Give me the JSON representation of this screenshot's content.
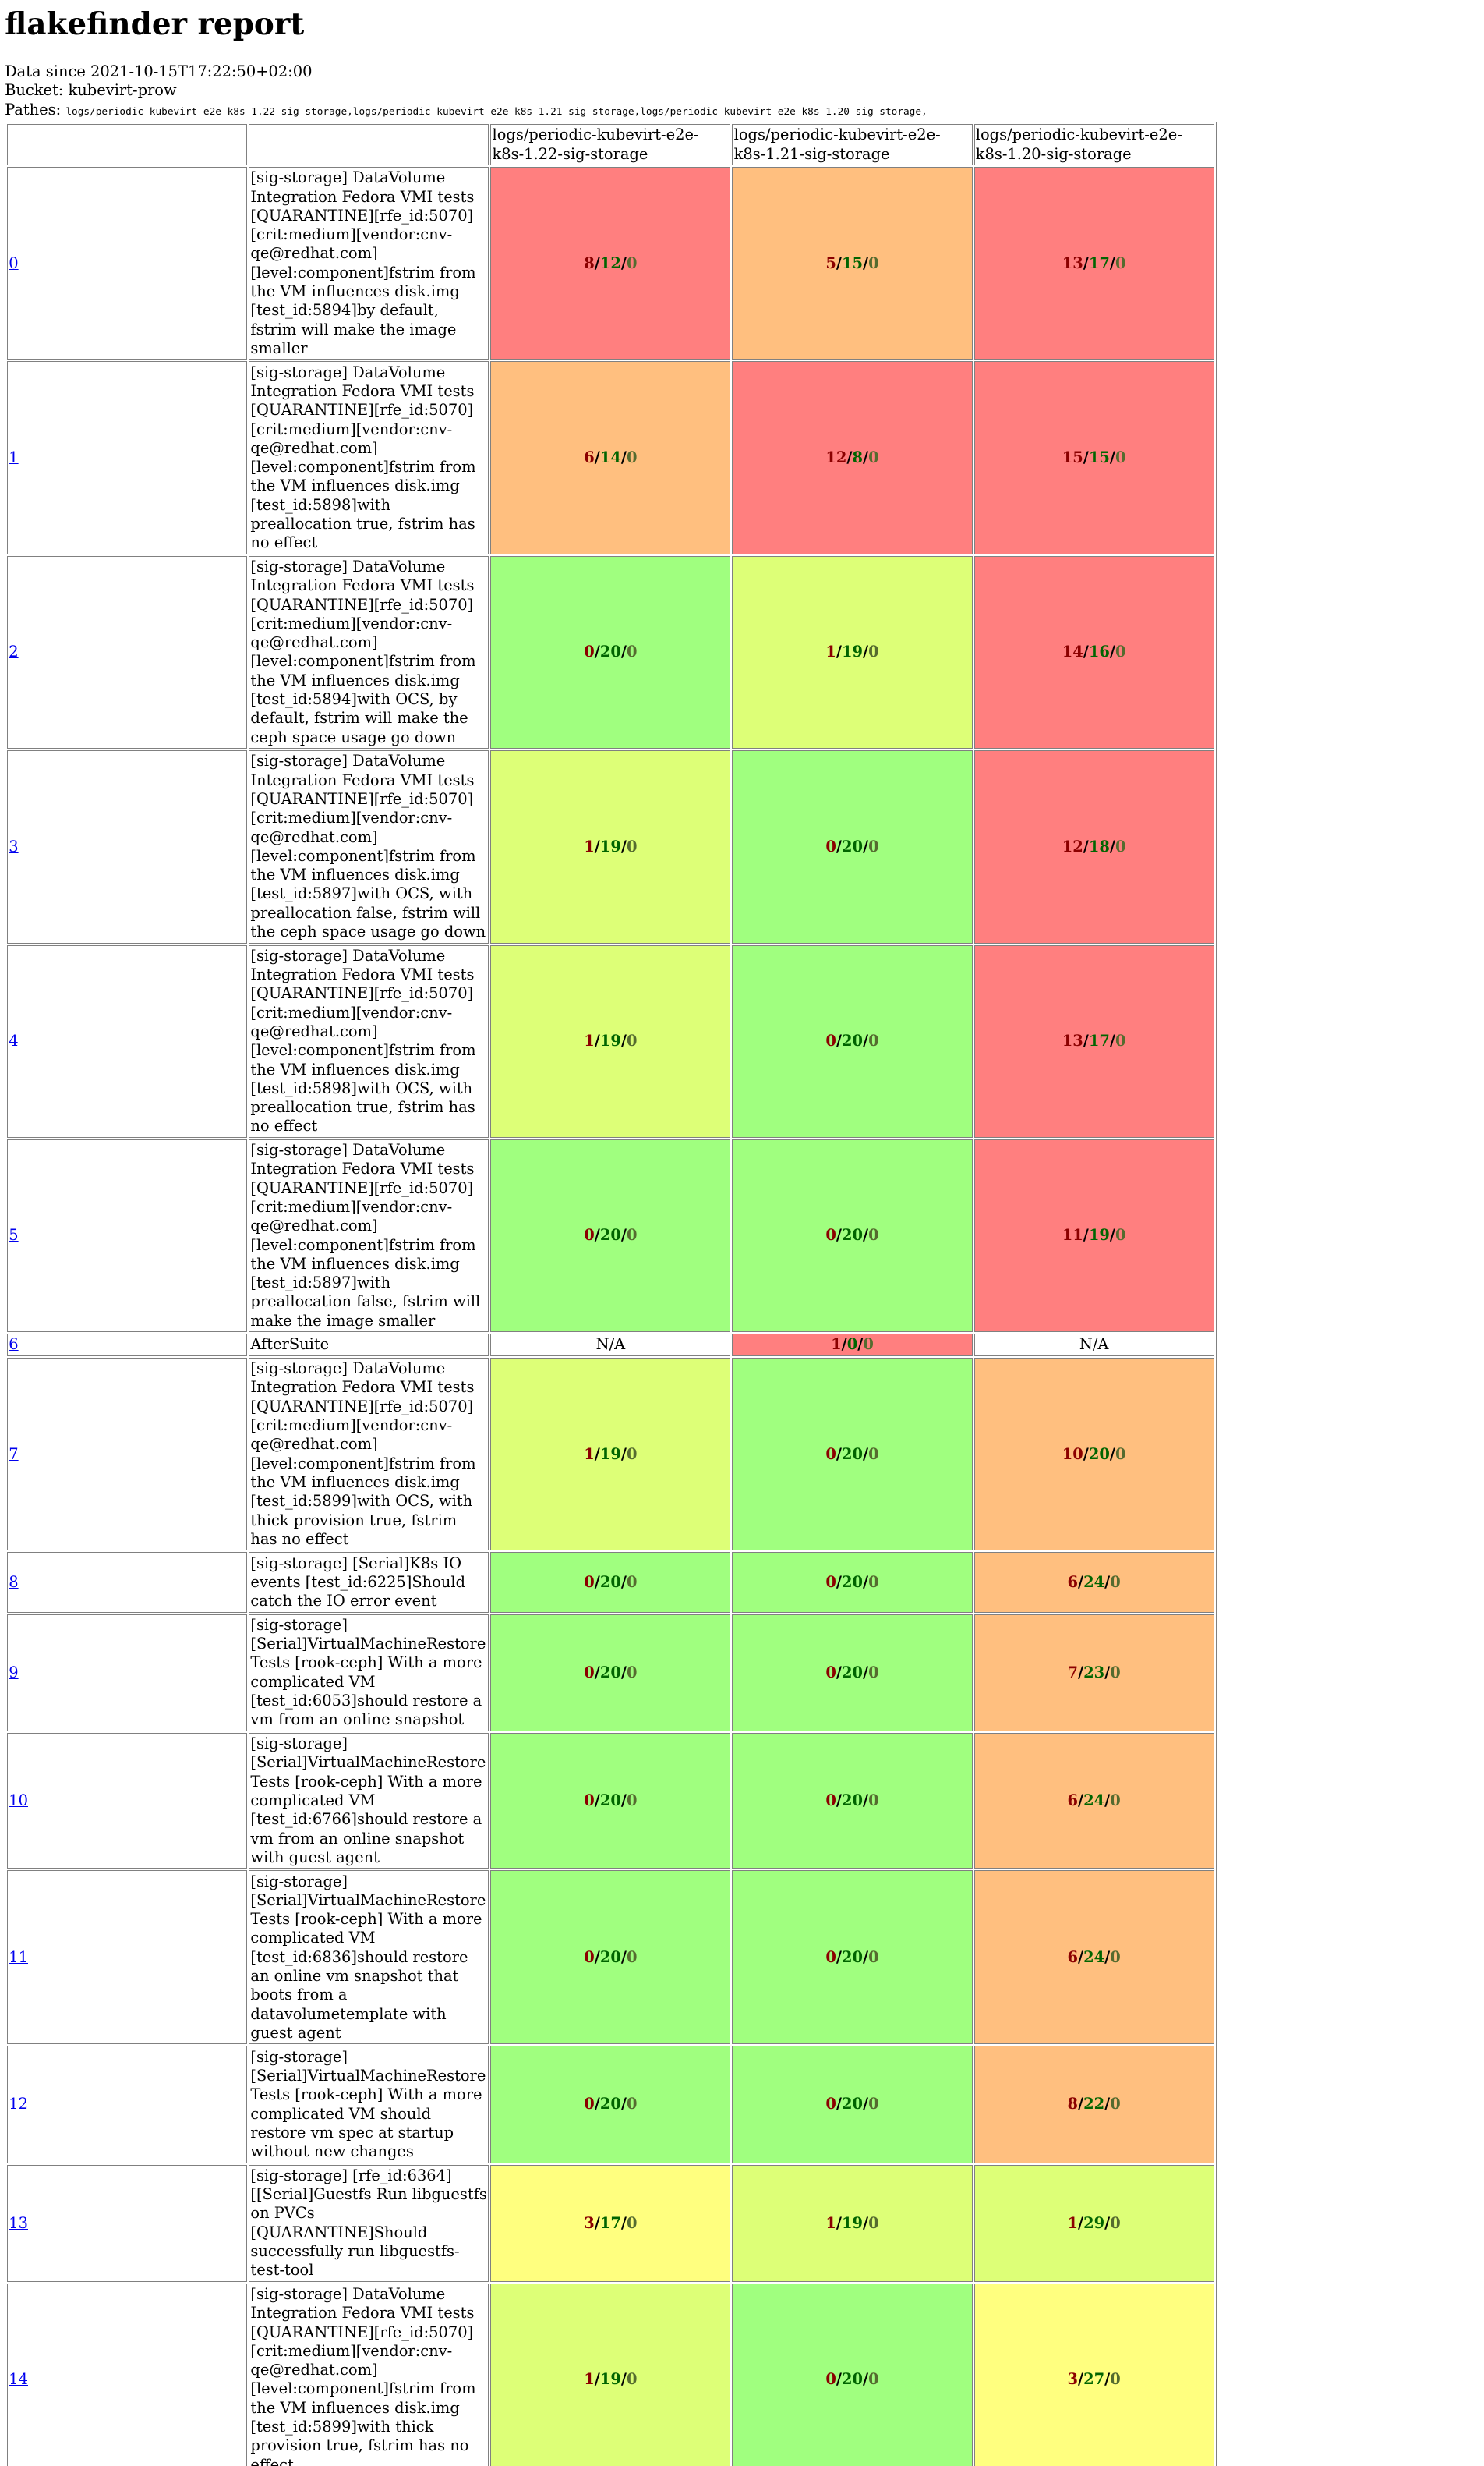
{
  "title": "flakefinder report",
  "meta": {
    "data_since_label": "Data since",
    "data_since_value": "2021-10-15T17:22:50+02:00",
    "bucket_label": "Bucket:",
    "bucket_value": "kubevirt-prow",
    "pathes_label": "Pathes:",
    "pathes_value": "logs/periodic-kubevirt-e2e-k8s-1.22-sig-storage,logs/periodic-kubevirt-e2e-k8s-1.21-sig-storage,logs/periodic-kubevirt-e2e-k8s-1.20-sig-storage,"
  },
  "colors": {
    "red": "#ff7f7f",
    "orange": "#ffbf7f",
    "green": "#a0ff7f",
    "lime": "#ddff77",
    "yellow": "#ffff7f",
    "white": "#ffffff",
    "failed_text": "#8b0000",
    "succeeded_text": "#006400",
    "skipped_text": "#556b2f"
  },
  "columns": [
    "logs/periodic-kubevirt-e2e-k8s-1.22-sig-storage",
    "logs/periodic-kubevirt-e2e-k8s-1.21-sig-storage",
    "logs/periodic-kubevirt-e2e-k8s-1.20-sig-storage"
  ],
  "rows": [
    {
      "index": "0",
      "name": "[sig-storage] DataVolume Integration Fedora VMI tests [QUARANTINE][rfe_id:5070][crit:medium][vendor:cnv-qe@redhat.com][level:component]fstrim from the VM influences disk.img [test_id:5894]by default, fstrim will make the image smaller",
      "cells": [
        {
          "f": "8",
          "s": "12",
          "k": "0",
          "color": "red"
        },
        {
          "f": "5",
          "s": "15",
          "k": "0",
          "color": "orange"
        },
        {
          "f": "13",
          "s": "17",
          "k": "0",
          "color": "red"
        }
      ]
    },
    {
      "index": "1",
      "name": "[sig-storage] DataVolume Integration Fedora VMI tests [QUARANTINE][rfe_id:5070][crit:medium][vendor:cnv-qe@redhat.com][level:component]fstrim from the VM influences disk.img [test_id:5898]with preallocation true, fstrim has no effect",
      "cells": [
        {
          "f": "6",
          "s": "14",
          "k": "0",
          "color": "orange"
        },
        {
          "f": "12",
          "s": "8",
          "k": "0",
          "color": "red"
        },
        {
          "f": "15",
          "s": "15",
          "k": "0",
          "color": "red"
        }
      ]
    },
    {
      "index": "2",
      "name": "[sig-storage] DataVolume Integration Fedora VMI tests [QUARANTINE][rfe_id:5070][crit:medium][vendor:cnv-qe@redhat.com][level:component]fstrim from the VM influences disk.img [test_id:5894]with OCS, by default, fstrim will make the ceph space usage go down",
      "cells": [
        {
          "f": "0",
          "s": "20",
          "k": "0",
          "color": "green"
        },
        {
          "f": "1",
          "s": "19",
          "k": "0",
          "color": "lime"
        },
        {
          "f": "14",
          "s": "16",
          "k": "0",
          "color": "red"
        }
      ]
    },
    {
      "index": "3",
      "name": "[sig-storage] DataVolume Integration Fedora VMI tests [QUARANTINE][rfe_id:5070][crit:medium][vendor:cnv-qe@redhat.com][level:component]fstrim from the VM influences disk.img [test_id:5897]with OCS, with preallocation false, fstrim will the ceph space usage go down",
      "cells": [
        {
          "f": "1",
          "s": "19",
          "k": "0",
          "color": "lime"
        },
        {
          "f": "0",
          "s": "20",
          "k": "0",
          "color": "green"
        },
        {
          "f": "12",
          "s": "18",
          "k": "0",
          "color": "red"
        }
      ]
    },
    {
      "index": "4",
      "name": "[sig-storage] DataVolume Integration Fedora VMI tests [QUARANTINE][rfe_id:5070][crit:medium][vendor:cnv-qe@redhat.com][level:component]fstrim from the VM influences disk.img [test_id:5898]with OCS, with preallocation true, fstrim has no effect",
      "cells": [
        {
          "f": "1",
          "s": "19",
          "k": "0",
          "color": "lime"
        },
        {
          "f": "0",
          "s": "20",
          "k": "0",
          "color": "green"
        },
        {
          "f": "13",
          "s": "17",
          "k": "0",
          "color": "red"
        }
      ]
    },
    {
      "index": "5",
      "name": "[sig-storage] DataVolume Integration Fedora VMI tests [QUARANTINE][rfe_id:5070][crit:medium][vendor:cnv-qe@redhat.com][level:component]fstrim from the VM influences disk.img [test_id:5897]with preallocation false, fstrim will make the image smaller",
      "cells": [
        {
          "f": "0",
          "s": "20",
          "k": "0",
          "color": "green"
        },
        {
          "f": "0",
          "s": "20",
          "k": "0",
          "color": "green"
        },
        {
          "f": "11",
          "s": "19",
          "k": "0",
          "color": "red"
        }
      ]
    },
    {
      "index": "6",
      "name": "AfterSuite",
      "cells": [
        {
          "na": "N/A",
          "color": "white"
        },
        {
          "f": "1",
          "s": "0",
          "k": "0",
          "color": "red"
        },
        {
          "na": "N/A",
          "color": "white"
        }
      ]
    },
    {
      "index": "7",
      "name": "[sig-storage] DataVolume Integration Fedora VMI tests [QUARANTINE][rfe_id:5070][crit:medium][vendor:cnv-qe@redhat.com][level:component]fstrim from the VM influences disk.img [test_id:5899]with OCS, with thick provision true, fstrim has no effect",
      "cells": [
        {
          "f": "1",
          "s": "19",
          "k": "0",
          "color": "lime"
        },
        {
          "f": "0",
          "s": "20",
          "k": "0",
          "color": "green"
        },
        {
          "f": "10",
          "s": "20",
          "k": "0",
          "color": "orange"
        }
      ]
    },
    {
      "index": "8",
      "name": "[sig-storage] [Serial]K8s IO events [test_id:6225]Should catch the IO error event",
      "cells": [
        {
          "f": "0",
          "s": "20",
          "k": "0",
          "color": "green"
        },
        {
          "f": "0",
          "s": "20",
          "k": "0",
          "color": "green"
        },
        {
          "f": "6",
          "s": "24",
          "k": "0",
          "color": "orange"
        }
      ]
    },
    {
      "index": "9",
      "name": "[sig-storage] [Serial]VirtualMachineRestore Tests [rook-ceph] With a more complicated VM [test_id:6053]should restore a vm from an online snapshot",
      "cells": [
        {
          "f": "0",
          "s": "20",
          "k": "0",
          "color": "green"
        },
        {
          "f": "0",
          "s": "20",
          "k": "0",
          "color": "green"
        },
        {
          "f": "7",
          "s": "23",
          "k": "0",
          "color": "orange"
        }
      ]
    },
    {
      "index": "10",
      "name": "[sig-storage] [Serial]VirtualMachineRestore Tests [rook-ceph] With a more complicated VM [test_id:6766]should restore a vm from an online snapshot with guest agent",
      "cells": [
        {
          "f": "0",
          "s": "20",
          "k": "0",
          "color": "green"
        },
        {
          "f": "0",
          "s": "20",
          "k": "0",
          "color": "green"
        },
        {
          "f": "6",
          "s": "24",
          "k": "0",
          "color": "orange"
        }
      ]
    },
    {
      "index": "11",
      "name": "[sig-storage] [Serial]VirtualMachineRestore Tests [rook-ceph] With a more complicated VM [test_id:6836]should restore an online vm snapshot that boots from a datavolumetemplate with guest agent",
      "cells": [
        {
          "f": "0",
          "s": "20",
          "k": "0",
          "color": "green"
        },
        {
          "f": "0",
          "s": "20",
          "k": "0",
          "color": "green"
        },
        {
          "f": "6",
          "s": "24",
          "k": "0",
          "color": "orange"
        }
      ]
    },
    {
      "index": "12",
      "name": "[sig-storage] [Serial]VirtualMachineRestore Tests [rook-ceph] With a more complicated VM should restore vm spec at startup without new changes",
      "cells": [
        {
          "f": "0",
          "s": "20",
          "k": "0",
          "color": "green"
        },
        {
          "f": "0",
          "s": "20",
          "k": "0",
          "color": "green"
        },
        {
          "f": "8",
          "s": "22",
          "k": "0",
          "color": "orange"
        }
      ]
    },
    {
      "index": "13",
      "name": "[sig-storage] [rfe_id:6364][[Serial]Guestfs Run libguestfs on PVCs [QUARANTINE]Should successfully run libguestfs-test-tool",
      "cells": [
        {
          "f": "3",
          "s": "17",
          "k": "0",
          "color": "yellow"
        },
        {
          "f": "1",
          "s": "19",
          "k": "0",
          "color": "lime"
        },
        {
          "f": "1",
          "s": "29",
          "k": "0",
          "color": "lime"
        }
      ]
    },
    {
      "index": "14",
      "name": "[sig-storage] DataVolume Integration Fedora VMI tests [QUARANTINE][rfe_id:5070][crit:medium][vendor:cnv-qe@redhat.com][level:component]fstrim from the VM influences disk.img [test_id:5899]with thick provision true, fstrim has no effect",
      "cells": [
        {
          "f": "1",
          "s": "19",
          "k": "0",
          "color": "lime"
        },
        {
          "f": "0",
          "s": "20",
          "k": "0",
          "color": "green"
        },
        {
          "f": "3",
          "s": "27",
          "k": "0",
          "color": "yellow"
        }
      ]
    }
  ]
}
